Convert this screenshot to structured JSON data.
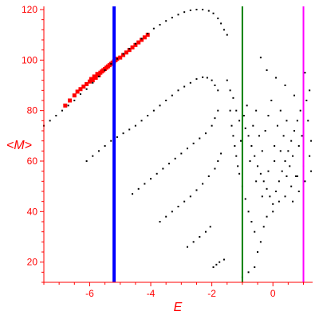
{
  "chart_data": {
    "type": "scatter",
    "xlabel": "E",
    "ylabel": "<M>",
    "xlim": [
      -7.5,
      1.3
    ],
    "ylim": [
      12,
      120
    ],
    "grid": false,
    "axis_color": "#ff0000",
    "xticks": [
      -6,
      -4,
      -2,
      0
    ],
    "yticks": [
      20,
      40,
      60,
      80,
      100,
      120
    ],
    "xtick_labels": [
      "-6",
      "-4",
      "-2",
      "0"
    ],
    "ytick_labels": [
      "20",
      "40",
      "60",
      "80",
      "100",
      "120"
    ],
    "vertical_lines": [
      {
        "x": -5.2,
        "color": "#0000ff"
      },
      {
        "x": -1.0,
        "color": "#008000"
      },
      {
        "x": 1.0,
        "color": "#ff00ff"
      }
    ],
    "series": [
      {
        "color": "#ff0000",
        "marker": "square",
        "points": [
          [
            -6.8,
            82
          ],
          [
            -6.65,
            84
          ],
          [
            -6.5,
            86
          ],
          [
            -6.4,
            87.5
          ],
          [
            -6.3,
            88.5
          ],
          [
            -6.2,
            89.5
          ],
          [
            -6.1,
            90.5
          ],
          [
            -6.0,
            91.5
          ],
          [
            -5.95,
            92.5
          ],
          [
            -5.9,
            92
          ],
          [
            -5.85,
            93.5
          ],
          [
            -5.8,
            93
          ],
          [
            -5.75,
            94.5
          ],
          [
            -5.7,
            94
          ],
          [
            -5.65,
            95
          ],
          [
            -5.6,
            95.5
          ],
          [
            -5.55,
            96
          ],
          [
            -5.5,
            96.5
          ],
          [
            -5.45,
            97
          ],
          [
            -5.4,
            97.5
          ],
          [
            -5.35,
            98
          ],
          [
            -5.3,
            98.5
          ],
          [
            -5.25,
            99
          ],
          [
            -5.2,
            99.5
          ],
          [
            -5.15,
            100
          ],
          [
            -5.1,
            100.5
          ],
          [
            -5.0,
            101
          ],
          [
            -4.9,
            102
          ],
          [
            -4.8,
            103
          ],
          [
            -4.7,
            104
          ],
          [
            -4.6,
            105
          ],
          [
            -4.5,
            106
          ],
          [
            -4.4,
            107
          ],
          [
            -4.3,
            108
          ],
          [
            -4.2,
            109
          ],
          [
            -4.1,
            110
          ]
        ]
      },
      {
        "color": "#000000",
        "marker": "dot",
        "points": [
          [
            -7.5,
            74
          ],
          [
            -7.3,
            76
          ],
          [
            -7.1,
            78
          ],
          [
            -6.9,
            80
          ],
          [
            -6.7,
            82
          ],
          [
            -6.5,
            84
          ],
          [
            -6.3,
            86.5
          ],
          [
            -6.1,
            88.5
          ],
          [
            -5.9,
            91
          ],
          [
            -5.7,
            93.5
          ],
          [
            -5.5,
            96
          ],
          [
            -5.3,
            98.5
          ],
          [
            -5.1,
            100.5
          ],
          [
            -4.9,
            102.5
          ],
          [
            -4.7,
            104.5
          ],
          [
            -4.5,
            106.5
          ],
          [
            -4.3,
            108.5
          ],
          [
            -4.1,
            110.5
          ],
          [
            -3.9,
            112.5
          ],
          [
            -3.7,
            114
          ],
          [
            -3.5,
            115.5
          ],
          [
            -3.3,
            116.8
          ],
          [
            -3.1,
            118
          ],
          [
            -2.9,
            119
          ],
          [
            -2.7,
            119.7
          ],
          [
            -2.5,
            120
          ],
          [
            -2.3,
            120
          ],
          [
            -2.1,
            119.5
          ],
          [
            -1.95,
            118.5
          ],
          [
            -1.8,
            116.5
          ],
          [
            -1.7,
            114.5
          ],
          [
            -1.6,
            112
          ],
          [
            -1.5,
            110
          ],
          [
            -6.1,
            60
          ],
          [
            -5.9,
            62
          ],
          [
            -5.7,
            64
          ],
          [
            -5.5,
            66
          ],
          [
            -5.3,
            68
          ],
          [
            -5.1,
            69.5
          ],
          [
            -4.9,
            71
          ],
          [
            -4.7,
            72.5
          ],
          [
            -4.5,
            74
          ],
          [
            -4.3,
            76
          ],
          [
            -4.1,
            78
          ],
          [
            -3.9,
            80
          ],
          [
            -3.7,
            82
          ],
          [
            -3.5,
            84
          ],
          [
            -3.3,
            86
          ],
          [
            -3.1,
            88
          ],
          [
            -2.9,
            89.5
          ],
          [
            -2.7,
            91
          ],
          [
            -2.5,
            92.5
          ],
          [
            -2.3,
            93.2
          ],
          [
            -2.15,
            93
          ],
          [
            -2.0,
            92
          ],
          [
            -1.9,
            90
          ],
          [
            -1.8,
            88
          ],
          [
            -4.6,
            47
          ],
          [
            -4.4,
            49
          ],
          [
            -4.2,
            51
          ],
          [
            -4.0,
            53
          ],
          [
            -3.8,
            55
          ],
          [
            -3.6,
            57
          ],
          [
            -3.4,
            59
          ],
          [
            -3.2,
            61
          ],
          [
            -3.0,
            63
          ],
          [
            -2.8,
            65
          ],
          [
            -2.6,
            67
          ],
          [
            -2.4,
            69
          ],
          [
            -2.2,
            71
          ],
          [
            -2.0,
            74
          ],
          [
            -1.9,
            77
          ],
          [
            -1.8,
            80
          ],
          [
            -3.7,
            36
          ],
          [
            -3.5,
            38
          ],
          [
            -3.3,
            40
          ],
          [
            -3.1,
            42
          ],
          [
            -2.9,
            44
          ],
          [
            -2.7,
            46
          ],
          [
            -2.5,
            48.5
          ],
          [
            -2.3,
            51
          ],
          [
            -2.1,
            54
          ],
          [
            -1.9,
            57
          ],
          [
            -1.8,
            60
          ],
          [
            -1.7,
            63
          ],
          [
            -2.8,
            26
          ],
          [
            -2.6,
            28
          ],
          [
            -2.4,
            30
          ],
          [
            -2.2,
            32
          ],
          [
            -2.05,
            34
          ],
          [
            -1.95,
            18
          ],
          [
            -1.85,
            19
          ],
          [
            -1.75,
            20
          ],
          [
            -1.6,
            21
          ],
          [
            -1.0,
            14
          ],
          [
            -0.8,
            16
          ],
          [
            -0.6,
            18
          ],
          [
            -0.5,
            24
          ],
          [
            -1.5,
            92
          ],
          [
            -1.4,
            88
          ],
          [
            -1.3,
            85
          ],
          [
            -1.2,
            80
          ],
          [
            -1.1,
            76
          ],
          [
            -0.9,
            73
          ],
          [
            -0.8,
            70
          ],
          [
            -0.7,
            66
          ],
          [
            -0.6,
            62
          ],
          [
            -0.5,
            58
          ],
          [
            -0.4,
            55
          ],
          [
            -0.3,
            52
          ],
          [
            -0.2,
            49
          ],
          [
            -0.1,
            46
          ],
          [
            0.0,
            43
          ],
          [
            0.1,
            48
          ],
          [
            0.2,
            52
          ],
          [
            0.3,
            56
          ],
          [
            0.4,
            60
          ],
          [
            0.5,
            64
          ],
          [
            0.6,
            68
          ],
          [
            0.7,
            72
          ],
          [
            0.8,
            76
          ],
          [
            0.9,
            80
          ],
          [
            1.1,
            84
          ],
          [
            1.2,
            88
          ],
          [
            -0.4,
            101
          ],
          [
            -0.2,
            96
          ],
          [
            0.1,
            93
          ],
          [
            0.4,
            90
          ],
          [
            0.7,
            86
          ],
          [
            1.05,
            95
          ],
          [
            -1.3,
            70
          ],
          [
            -1.2,
            62
          ],
          [
            -1.1,
            55
          ],
          [
            -1.0,
            50
          ],
          [
            -0.9,
            45
          ],
          [
            -0.8,
            40
          ],
          [
            -0.7,
            36
          ],
          [
            -0.6,
            32
          ],
          [
            -0.4,
            28
          ],
          [
            -0.3,
            34
          ],
          [
            -0.2,
            38
          ],
          [
            0.0,
            40
          ],
          [
            0.2,
            44
          ],
          [
            0.4,
            46
          ],
          [
            0.6,
            50
          ],
          [
            0.8,
            54
          ],
          [
            1.0,
            58
          ],
          [
            1.2,
            62
          ],
          [
            -1.4,
            80
          ],
          [
            -1.35,
            74
          ],
          [
            -1.25,
            66
          ],
          [
            -1.15,
            58
          ],
          [
            -1.05,
            68
          ],
          [
            -0.95,
            78
          ],
          [
            -0.85,
            82
          ],
          [
            -0.75,
            60
          ],
          [
            -0.65,
            74
          ],
          [
            -0.55,
            80
          ],
          [
            -0.45,
            70
          ],
          [
            -0.35,
            64
          ],
          [
            -0.25,
            72
          ],
          [
            -0.15,
            78
          ],
          [
            -0.05,
            84
          ],
          [
            0.05,
            66
          ],
          [
            0.15,
            74
          ],
          [
            0.25,
            80
          ],
          [
            0.35,
            70
          ],
          [
            0.45,
            76
          ],
          [
            0.55,
            58
          ],
          [
            0.65,
            62
          ],
          [
            0.75,
            54
          ],
          [
            0.85,
            66
          ],
          [
            0.95,
            70
          ],
          [
            1.15,
            76
          ],
          [
            1.25,
            68
          ],
          [
            -0.55,
            52
          ],
          [
            -0.35,
            46
          ],
          [
            -0.15,
            56
          ],
          [
            0.05,
            60
          ],
          [
            0.25,
            64
          ],
          [
            0.45,
            54
          ],
          [
            0.65,
            44
          ],
          [
            0.85,
            48
          ],
          [
            1.05,
            52
          ],
          [
            1.25,
            56
          ]
        ]
      }
    ]
  }
}
